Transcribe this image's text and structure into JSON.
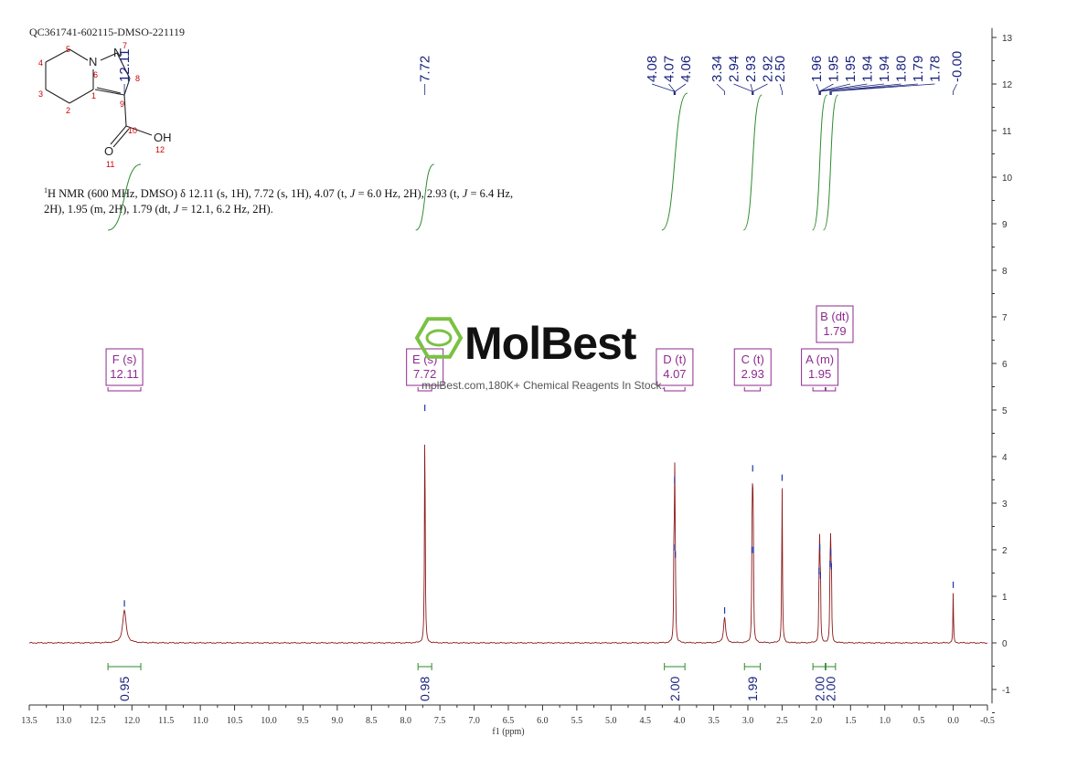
{
  "sample_id": "QC361741-602115-DMSO-221119",
  "nmr_text": {
    "nucleus": "1",
    "line1": "H NMR (600 MHz, DMSO) δ 12.11 (s, 1H), 7.72 (s, 1H), 4.07 (t, ",
    "j1_symbol": "J",
    "line1b": " = 6.0 Hz, 2H), 2.93 (t, ",
    "j2_symbol": "J",
    "line1c": " = 6.4 Hz,",
    "line2": "2H), 1.95 (m, 2H), 1.79 (dt, ",
    "j3_symbol": "J",
    "line2b": " = 12.1, 6.2 Hz, 2H)."
  },
  "structure": {
    "atoms": [
      {
        "label": "N",
        "num": "6"
      },
      {
        "label": "N",
        "num": "7"
      },
      {
        "label": "",
        "num": "8"
      },
      {
        "label": "",
        "num": "9"
      },
      {
        "label": "",
        "num": "1"
      },
      {
        "label": "",
        "num": "2"
      },
      {
        "label": "",
        "num": "3"
      },
      {
        "label": "",
        "num": "4"
      },
      {
        "label": "",
        "num": "5"
      },
      {
        "label": "",
        "num": "10"
      },
      {
        "label": "O",
        "num": "11"
      },
      {
        "label": "OH",
        "num": "12"
      }
    ]
  },
  "watermark": {
    "brand": "MolBest",
    "tagline": "molBest.com,180K+ Chemical Reagents In Stock."
  },
  "colors": {
    "spectrum": "#8b1a1a",
    "peak_labels": "#1a237e",
    "integrals": "#2e8b2e",
    "multiplets": "#8e2a8e",
    "logo": "#7bc143",
    "atom_numbers": "#cc0000"
  },
  "chart_data": {
    "type": "line",
    "xlabel": "f1 (ppm)",
    "xlim": [
      13.5,
      -0.5
    ],
    "ylim": [
      -1.3,
      13.2
    ],
    "x_ticks": [
      "13.5",
      "13.0",
      "12.5",
      "12.0",
      "11.5",
      "11.0",
      "10.5",
      "10.0",
      "9.5",
      "9.0",
      "8.5",
      "8.0",
      "7.5",
      "7.0",
      "6.5",
      "6.0",
      "5.5",
      "5.0",
      "4.5",
      "4.0",
      "3.5",
      "3.0",
      "2.5",
      "2.0",
      "1.5",
      "1.0",
      "0.5",
      "0.0",
      "-0.5"
    ],
    "y_ticks": [
      "13",
      "12",
      "11",
      "10",
      "9",
      "8",
      "7",
      "6",
      "5",
      "4",
      "3",
      "2",
      "1",
      "0",
      "-1"
    ],
    "peak_labels": [
      "12.11",
      "7.72",
      "4.08",
      "4.07",
      "4.06",
      "3.34",
      "2.94",
      "2.93",
      "2.92",
      "2.50",
      "1.96",
      "1.95",
      "1.95",
      "1.94",
      "1.94",
      "1.80",
      "1.79",
      "1.78",
      "-0.00"
    ],
    "peaks": [
      {
        "ppm": 12.11,
        "height": 0.7,
        "width": 0.03
      },
      {
        "ppm": 7.72,
        "height": 4.9,
        "width": 0.006
      },
      {
        "ppm": 4.08,
        "height": 1.9,
        "width": 0.005
      },
      {
        "ppm": 4.07,
        "height": 3.35,
        "width": 0.005
      },
      {
        "ppm": 4.06,
        "height": 1.75,
        "width": 0.005
      },
      {
        "ppm": 3.34,
        "height": 0.55,
        "width": 0.018
      },
      {
        "ppm": 2.94,
        "height": 1.85,
        "width": 0.005
      },
      {
        "ppm": 2.93,
        "height": 3.6,
        "width": 0.005
      },
      {
        "ppm": 2.92,
        "height": 1.85,
        "width": 0.005
      },
      {
        "ppm": 2.5,
        "height": 3.4,
        "width": 0.006
      },
      {
        "ppm": 1.96,
        "height": 1.4,
        "width": 0.005
      },
      {
        "ppm": 1.95,
        "height": 1.9,
        "width": 0.005
      },
      {
        "ppm": 1.94,
        "height": 1.3,
        "width": 0.005
      },
      {
        "ppm": 1.8,
        "height": 1.55,
        "width": 0.005
      },
      {
        "ppm": 1.79,
        "height": 1.8,
        "width": 0.005
      },
      {
        "ppm": 1.78,
        "height": 1.5,
        "width": 0.005
      },
      {
        "ppm": 0.0,
        "height": 1.1,
        "width": 0.005
      }
    ],
    "multiplets": [
      {
        "letter": "F (s)",
        "shift": "12.11",
        "from": 12.35,
        "to": 11.87
      },
      {
        "letter": "E (s)",
        "shift": "7.72",
        "from": 7.82,
        "to": 7.62
      },
      {
        "letter": "D (t)",
        "shift": "4.07",
        "from": 4.22,
        "to": 3.92
      },
      {
        "letter": "C (t)",
        "shift": "2.93",
        "from": 3.05,
        "to": 2.82
      },
      {
        "letter": "A (m)",
        "shift": "1.95",
        "from": 2.05,
        "to": 1.87
      },
      {
        "letter": "B (dt)",
        "shift": "1.79",
        "from": 1.86,
        "to": 1.72
      }
    ],
    "integrals": [
      {
        "value": "0.95",
        "from": 12.35,
        "to": 11.87,
        "center": 12.11
      },
      {
        "value": "0.98",
        "from": 7.82,
        "to": 7.62,
        "center": 7.72
      },
      {
        "value": "2.00",
        "from": 4.22,
        "to": 3.92,
        "center": 4.07
      },
      {
        "value": "1.99",
        "from": 3.05,
        "to": 2.82,
        "center": 2.93
      },
      {
        "value": "2.00",
        "from": 2.05,
        "to": 1.87,
        "center": 1.95
      },
      {
        "value": "2.00",
        "from": 1.86,
        "to": 1.72,
        "center": 1.79
      }
    ]
  }
}
